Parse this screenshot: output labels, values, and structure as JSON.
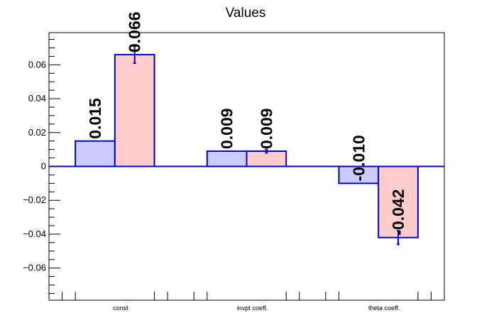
{
  "chart_data": {
    "type": "bar",
    "title": "Values",
    "categories": [
      "const",
      "invpt coeff.",
      "theta coeff."
    ],
    "series": [
      {
        "values": [
          0.015,
          0.009,
          -0.01
        ],
        "errors": [
          0,
          0,
          0
        ],
        "color": "#ccccff"
      },
      {
        "values": [
          0.066,
          0.009,
          -0.042
        ],
        "errors": [
          0.005,
          0.001,
          0.004
        ],
        "color": "#ffcccc"
      }
    ],
    "value_labels": [
      [
        "0.015",
        "0.009",
        "-0.010"
      ],
      [
        "0.066",
        "0.009",
        "-0.042"
      ]
    ],
    "ylim": [
      -0.079,
      0.079
    ],
    "yticks": [
      -0.06,
      -0.04,
      -0.02,
      0,
      0.02,
      0.04,
      0.06
    ],
    "ytick_labels": [
      "−0.06",
      "−0.04",
      "−0.02",
      "0",
      "0.02",
      "0.04",
      "0.06"
    ],
    "edge_color": "#0000cc",
    "grid": false
  }
}
